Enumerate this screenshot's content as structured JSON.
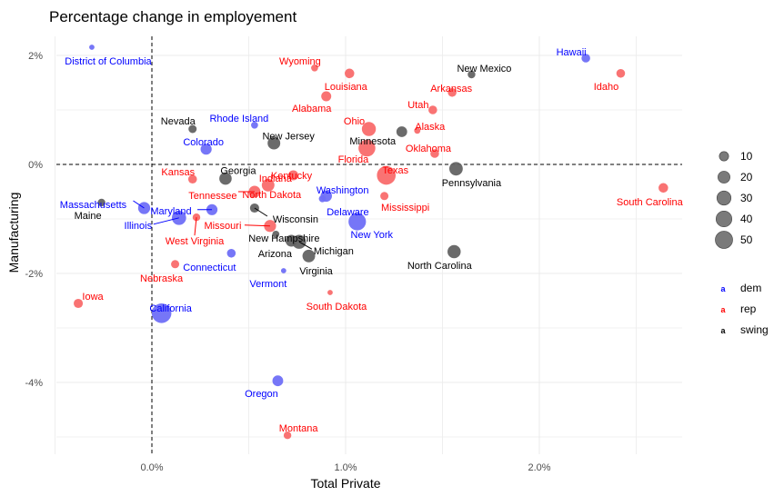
{
  "chart_data": {
    "type": "scatter",
    "title": "Percentage change in employement",
    "xlabel": "Total Private",
    "ylabel": "Manufacturing",
    "xlim": [
      -0.5,
      2.8
    ],
    "ylim": [
      -5.3,
      2.3
    ],
    "x_ticks": [
      {
        "value": 0,
        "label": "0.0%"
      },
      {
        "value": 1,
        "label": "1.0%"
      },
      {
        "value": 2,
        "label": "2.0%"
      }
    ],
    "y_ticks": [
      {
        "value": 2,
        "label": "2%"
      },
      {
        "value": 0,
        "label": "0%"
      },
      {
        "value": -2,
        "label": "-2%"
      },
      {
        "value": -4,
        "label": "-4%"
      }
    ],
    "x_minor": [
      -0.5,
      0.5,
      1.5,
      2.5
    ],
    "y_minor": [
      1,
      -1,
      -3,
      -5
    ],
    "grid": true,
    "reference_lines": {
      "x": 0,
      "y": 0,
      "style": "dashed"
    },
    "colors": {
      "dem": "#0000ff",
      "rep": "#ff0000",
      "swing": "#000000"
    },
    "point_colors": {
      "dem": "#6f6ff7",
      "rep": "#f96b6b",
      "swing": "#636363"
    },
    "legend": {
      "placement": "right",
      "size_title": "",
      "size_entries": [
        10,
        20,
        30,
        40,
        50
      ],
      "color_entries": [
        "dem",
        "rep",
        "swing"
      ]
    },
    "points": [
      {
        "state": "District of Columbia",
        "party": "dem",
        "x": -0.31,
        "y": 2.15,
        "size": 1
      },
      {
        "state": "Hawaii",
        "party": "dem",
        "x": 2.24,
        "y": 1.95,
        "size": 6
      },
      {
        "state": "Wyoming",
        "party": "rep",
        "x": 0.84,
        "y": 1.77,
        "size": 3
      },
      {
        "state": "Louisiana",
        "party": "rep",
        "x": 1.02,
        "y": 1.67,
        "size": 8
      },
      {
        "state": "Idaho",
        "party": "rep",
        "x": 2.42,
        "y": 1.67,
        "size": 6
      },
      {
        "state": "New Mexico",
        "party": "swing",
        "x": 1.65,
        "y": 1.65,
        "size": 4
      },
      {
        "state": "Arkansas",
        "party": "rep",
        "x": 1.55,
        "y": 1.32,
        "size": 6
      },
      {
        "state": "Alabama",
        "party": "rep",
        "x": 0.9,
        "y": 1.25,
        "size": 9
      },
      {
        "state": "Utah",
        "party": "rep",
        "x": 1.45,
        "y": 1.0,
        "size": 6
      },
      {
        "state": "Rhode Island",
        "party": "dem",
        "x": 0.53,
        "y": 0.72,
        "size": 3
      },
      {
        "state": "Nevada",
        "party": "swing",
        "x": 0.21,
        "y": 0.65,
        "size": 5
      },
      {
        "state": "Ohio",
        "party": "rep",
        "x": 1.12,
        "y": 0.65,
        "size": 22
      },
      {
        "state": "Alaska",
        "party": "rep",
        "x": 1.37,
        "y": 0.62,
        "size": 2
      },
      {
        "state": "Minnesota",
        "party": "swing",
        "x": 1.29,
        "y": 0.6,
        "size": 11
      },
      {
        "state": "New Jersey",
        "party": "swing",
        "x": 0.63,
        "y": 0.39,
        "size": 17
      },
      {
        "state": "Florida",
        "party": "rep",
        "x": 1.11,
        "y": 0.3,
        "size": 35
      },
      {
        "state": "Colorado",
        "party": "dem",
        "x": 0.28,
        "y": 0.28,
        "size": 12
      },
      {
        "state": "Oklahoma",
        "party": "rep",
        "x": 1.46,
        "y": 0.2,
        "size": 6
      },
      {
        "state": "Pennsylvania",
        "party": "swing",
        "x": 1.57,
        "y": -0.08,
        "size": 20
      },
      {
        "state": "Texas",
        "party": "rep",
        "x": 1.21,
        "y": -0.2,
        "size": 45
      },
      {
        "state": "Kentucky",
        "party": "rep",
        "x": 0.73,
        "y": -0.2,
        "size": 9
      },
      {
        "state": "Georgia",
        "party": "swing",
        "x": 0.38,
        "y": -0.26,
        "size": 16
      },
      {
        "state": "Kansas",
        "party": "rep",
        "x": 0.21,
        "y": -0.27,
        "size": 6
      },
      {
        "state": "Indiana",
        "party": "rep",
        "x": 0.6,
        "y": -0.38,
        "size": 17
      },
      {
        "state": "South Carolina",
        "party": "rep",
        "x": 2.64,
        "y": -0.43,
        "size": 8
      },
      {
        "state": "Tennessee",
        "party": "rep",
        "x": 0.53,
        "y": -0.5,
        "size": 14
      },
      {
        "state": "Washington",
        "party": "dem",
        "x": 0.9,
        "y": -0.58,
        "size": 13
      },
      {
        "state": "Mississippi",
        "party": "rep",
        "x": 1.2,
        "y": -0.58,
        "size": 5
      },
      {
        "state": "Massachusetts",
        "party": "dem",
        "x": -0.04,
        "y": -0.8,
        "size": 15
      },
      {
        "state": "Maine",
        "party": "swing",
        "x": -0.26,
        "y": -0.7,
        "size": 4
      },
      {
        "state": "North Dakota",
        "party": "rep",
        "x": 0.52,
        "y": -0.57,
        "size": 1
      },
      {
        "state": "Maryland",
        "party": "dem",
        "x": 0.31,
        "y": -0.83,
        "size": 12
      },
      {
        "state": "Wisconsin",
        "party": "swing",
        "x": 0.53,
        "y": -0.8,
        "size": 7
      },
      {
        "state": "Illinois",
        "party": "dem",
        "x": 0.14,
        "y": -0.98,
        "size": 23
      },
      {
        "state": "West Virginia",
        "party": "rep",
        "x": 0.23,
        "y": -0.97,
        "size": 4
      },
      {
        "state": "Delaware",
        "party": "dem",
        "x": 0.88,
        "y": -0.63,
        "size": 3
      },
      {
        "state": "New York",
        "party": "dem",
        "x": 1.06,
        "y": -1.05,
        "size": 38
      },
      {
        "state": "Missouri",
        "party": "rep",
        "x": 0.61,
        "y": -1.13,
        "size": 15
      },
      {
        "state": "New Hampshire",
        "party": "swing",
        "x": 0.64,
        "y": -1.28,
        "size": 3
      },
      {
        "state": "Arizona",
        "party": "swing",
        "x": 0.72,
        "y": -1.4,
        "size": 14
      },
      {
        "state": "Michigan",
        "party": "swing",
        "x": 0.76,
        "y": -1.42,
        "size": 22
      },
      {
        "state": "Virginia",
        "party": "swing",
        "x": 0.81,
        "y": -1.68,
        "size": 17
      },
      {
        "state": "Connecticut",
        "party": "dem",
        "x": 0.41,
        "y": -1.63,
        "size": 6
      },
      {
        "state": "North Carolina",
        "party": "swing",
        "x": 1.56,
        "y": -1.6,
        "size": 19
      },
      {
        "state": "Nebraska",
        "party": "rep",
        "x": 0.12,
        "y": -1.83,
        "size": 5
      },
      {
        "state": "Vermont",
        "party": "dem",
        "x": 0.68,
        "y": -1.95,
        "size": 1
      },
      {
        "state": "South Dakota",
        "party": "rep",
        "x": 0.92,
        "y": -2.35,
        "size": 1
      },
      {
        "state": "Iowa",
        "party": "rep",
        "x": -0.38,
        "y": -2.55,
        "size": 7
      },
      {
        "state": "California",
        "party": "dem",
        "x": 0.05,
        "y": -2.73,
        "size": 50
      },
      {
        "state": "Oregon",
        "party": "dem",
        "x": 0.65,
        "y": -3.97,
        "size": 11
      },
      {
        "state": "Montana",
        "party": "rep",
        "x": 0.7,
        "y": -4.97,
        "size": 4
      }
    ]
  }
}
